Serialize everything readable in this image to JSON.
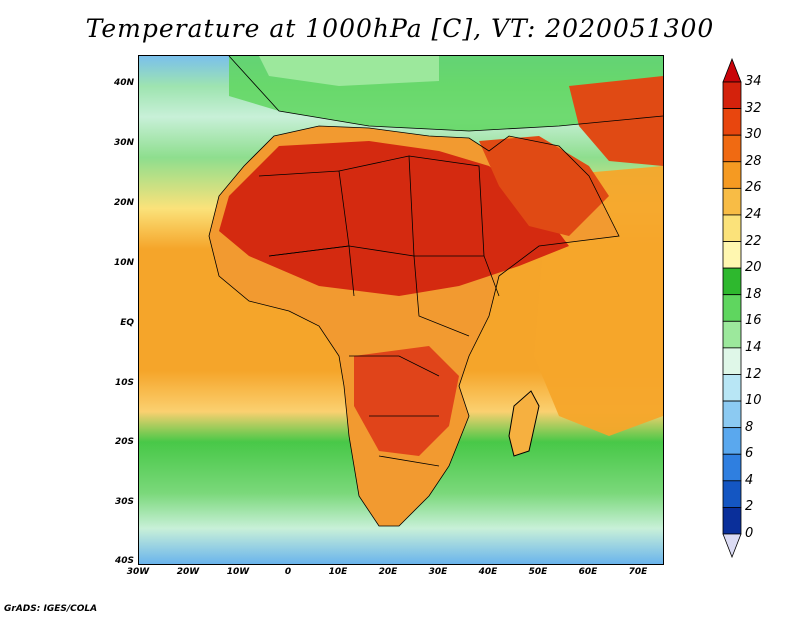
{
  "title": "Temperature at 1000hPa [C], VT: 2020051300",
  "credit": "GrADS: IGES/COLA",
  "lat_labels": [
    "40N",
    "30N",
    "20N",
    "10N",
    "EQ",
    "10S",
    "20S",
    "30S",
    "40S"
  ],
  "lon_labels": [
    "30W",
    "20W",
    "10W",
    "0",
    "10E",
    "20E",
    "30E",
    "40E",
    "50E",
    "60E",
    "70E"
  ],
  "colorbar": {
    "labels": [
      "34",
      "32",
      "30",
      "28",
      "26",
      "24",
      "22",
      "20",
      "18",
      "16",
      "14",
      "12",
      "10",
      "8",
      "6",
      "4",
      "2",
      "0"
    ],
    "colors": [
      "#b3080c",
      "#d4220c",
      "#e8460e",
      "#f06a12",
      "#f59a22",
      "#f8bc45",
      "#fbe27a",
      "#fff7b0",
      "#2eb82e",
      "#5fd65f",
      "#9ce89c",
      "#dff7e8",
      "#b8e6f5",
      "#8ccaf2",
      "#5aa8ee",
      "#2f7fe0",
      "#1456c2",
      "#0a2f9a",
      "#06166c"
    ],
    "over_color": "#c8040a",
    "under_color": "#dcdcf4"
  }
}
